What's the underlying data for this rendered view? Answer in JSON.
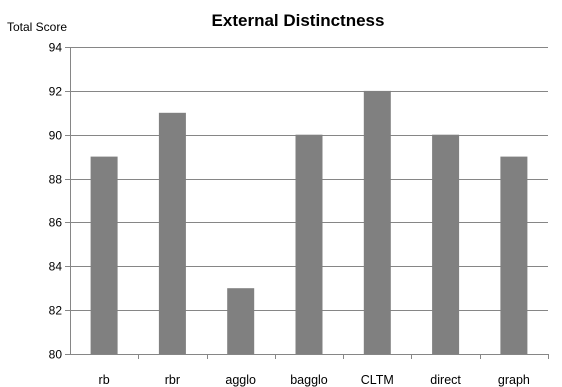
{
  "chart_data": {
    "type": "bar",
    "title": "External Distinctness",
    "xlabel": "",
    "ylabel": "Total Score",
    "categories": [
      "rb",
      "rbr",
      "agglo",
      "bagglo",
      "CLTM",
      "direct",
      "graph"
    ],
    "values": [
      89,
      91,
      83,
      90,
      92,
      90,
      89
    ],
    "ylim": [
      80,
      94
    ],
    "yticks": [
      80,
      82,
      84,
      86,
      88,
      90,
      92,
      94
    ],
    "grid": true,
    "legend": "none",
    "bar_color": "#808080",
    "grid_color": "#868686",
    "axis_color": "#868686"
  }
}
